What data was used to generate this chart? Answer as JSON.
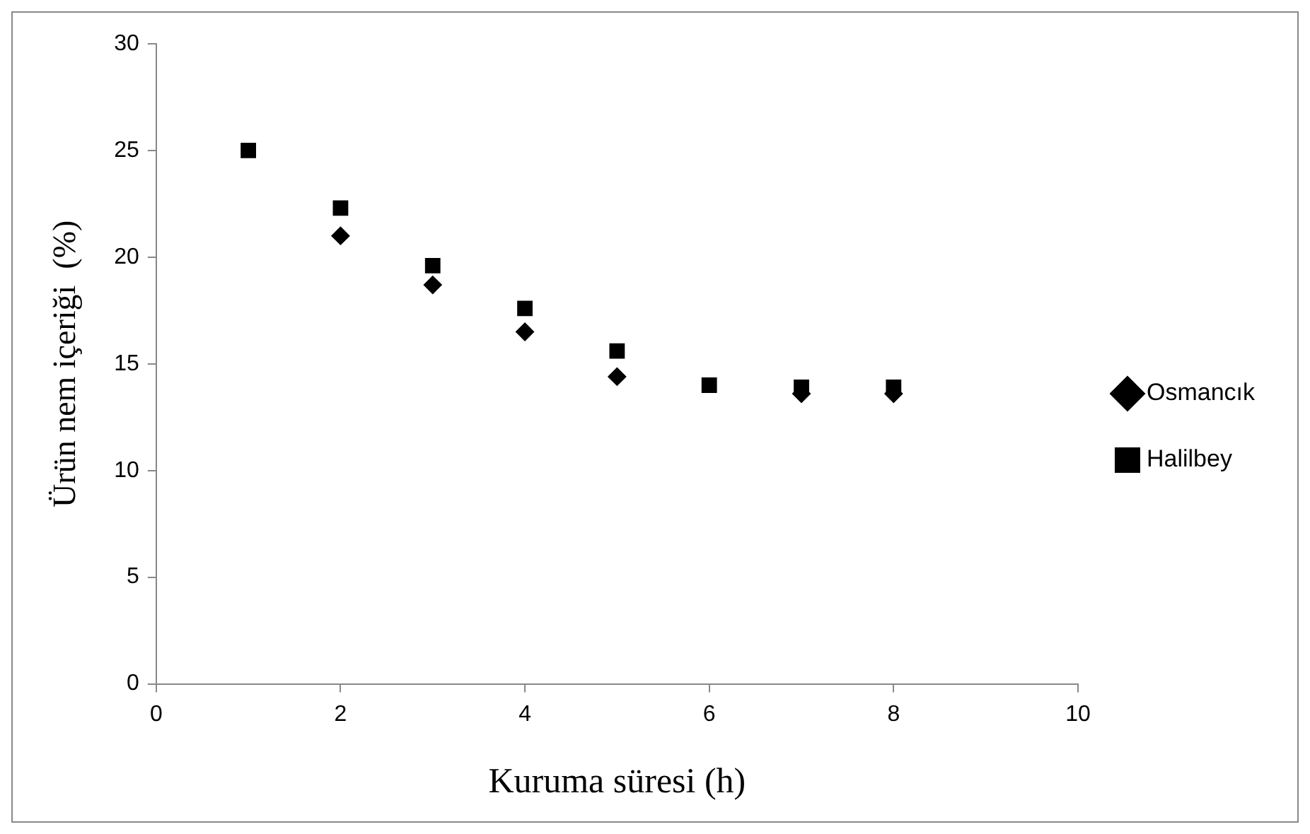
{
  "chart_data": {
    "type": "scatter",
    "xlabel": "Kuruma süresi (h)",
    "ylabel": "Ürün nem içeriği  (%)",
    "x": [
      1,
      2,
      3,
      4,
      5,
      6,
      7,
      8
    ],
    "series": [
      {
        "name": "Osmancık",
        "color": "#000000",
        "marker": "diamond",
        "values": [
          null,
          21,
          18.7,
          16.5,
          14.4,
          null,
          13.6,
          13.6
        ]
      },
      {
        "name": "Halilbey",
        "color": "#000000",
        "marker": "square",
        "values": [
          25,
          22.3,
          19.6,
          17.6,
          15.6,
          14,
          13.9,
          13.9
        ]
      }
    ],
    "xlim": [
      0,
      10
    ],
    "xticks": [
      0,
      2,
      4,
      6,
      8,
      10
    ],
    "ylim": [
      0,
      30
    ],
    "yticks": [
      0,
      5,
      10,
      15,
      20,
      25,
      30
    ],
    "grid": false,
    "legend": "right"
  }
}
